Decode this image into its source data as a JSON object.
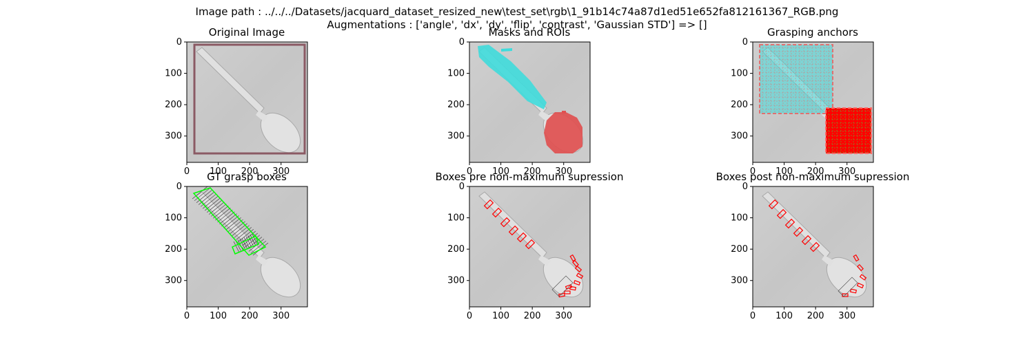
{
  "figure": {
    "title_line1": "Image path : ../../../Datasets/jacquard_dataset_resized_new\\test_set\\rgb\\1_91b14c74a87d1ed51e652fa812161367_RGB.png",
    "title_line2": "Augmentations : ['angle', 'dx', 'dy', 'flip', 'contrast', 'Gaussian STD'] => []"
  },
  "panels": [
    {
      "id": "original",
      "title": "Original Image"
    },
    {
      "id": "masks",
      "title": "Masks and ROIs"
    },
    {
      "id": "anchors",
      "title": "Grasping anchors"
    },
    {
      "id": "gt",
      "title": "GT grasp boxes"
    },
    {
      "id": "pre_nms",
      "title": "Boxes pre non-maximum supression"
    },
    {
      "id": "post_nms",
      "title": "Boxes post non-maximum supression"
    }
  ],
  "axes": {
    "x_ticks": [
      "0",
      "100",
      "200",
      "300"
    ],
    "y_ticks": [
      "0",
      "100",
      "200",
      "300"
    ],
    "xlim": [
      0,
      384
    ],
    "ylim": [
      384,
      0
    ]
  },
  "colors": {
    "background": "#c9c9c9",
    "spoon": "#dedede",
    "roi_box": "#8b5a64",
    "mask_handle": "#3fdcdc",
    "mask_bowl": "#e05050",
    "gt_box": "#00ff00",
    "pred_box": "#ff0000",
    "text": "#000000"
  }
}
